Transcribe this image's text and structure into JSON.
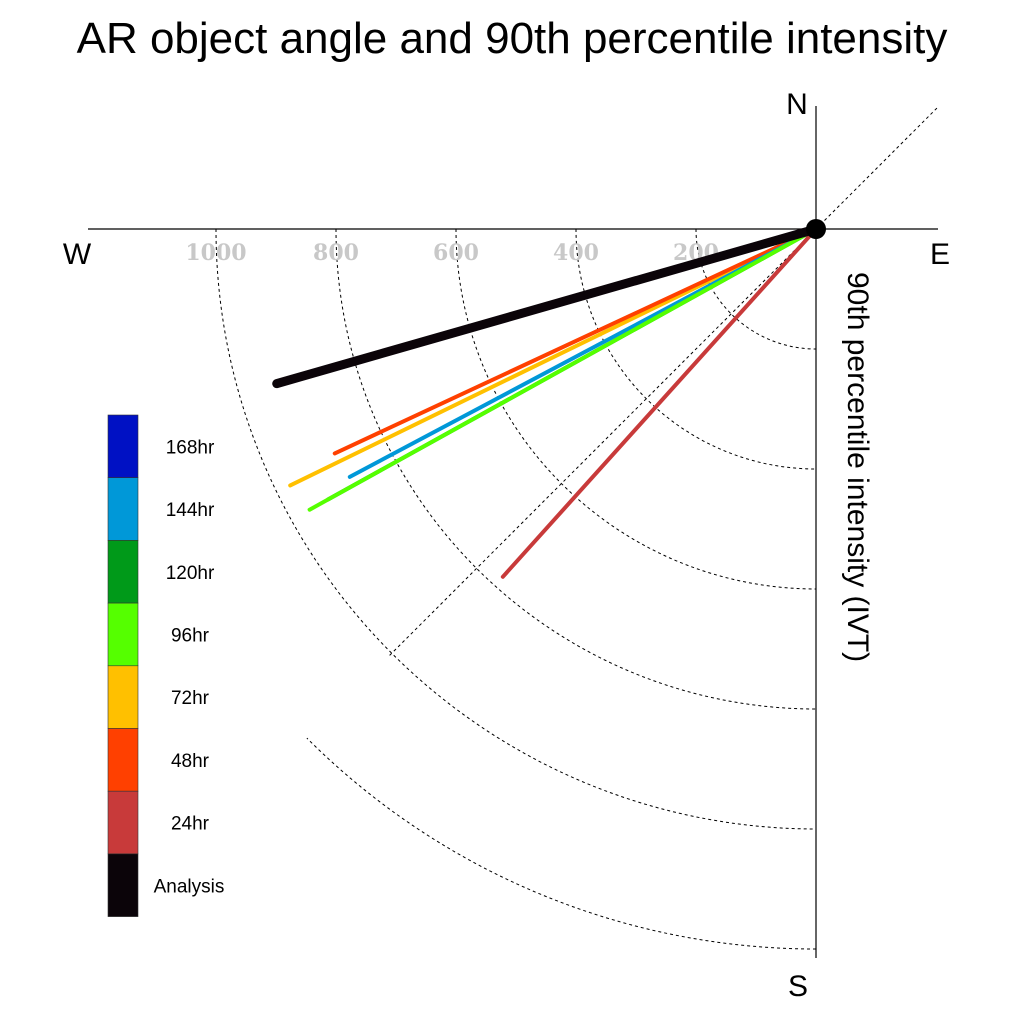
{
  "chart_data": {
    "type": "polar-vector",
    "title": "AR object angle and 90th percentile intensity",
    "ylabel": "90th percentile intensity (IVT)",
    "compass": {
      "north": "N",
      "south": "S",
      "east": "E",
      "west": "W"
    },
    "radial_ticks": [
      {
        "value": 200,
        "label": "200"
      },
      {
        "value": 400,
        "label": "400"
      },
      {
        "value": 600,
        "label": "600"
      },
      {
        "value": 800,
        "label": "800"
      },
      {
        "value": 1000,
        "label": "1000"
      }
    ],
    "radial_max": 1200,
    "series": [
      {
        "name": "Analysis",
        "intensity": 935,
        "angle_deg": 196,
        "color": "#0b0409"
      },
      {
        "name": "24hr",
        "intensity": 780,
        "angle_deg": 228,
        "color": "#c83a3a"
      },
      {
        "name": "48hr",
        "intensity": 885,
        "angle_deg": 205,
        "color": "#ff4000"
      },
      {
        "name": "72hr",
        "intensity": 975,
        "angle_deg": 206,
        "color": "#ffc000"
      },
      {
        "name": "96hr",
        "intensity": 965,
        "angle_deg": 209,
        "color": "#55ff00"
      },
      {
        "name": "120hr",
        "intensity": 930,
        "angle_deg": 209,
        "color": "#009a19"
      },
      {
        "name": "144hr",
        "intensity": 880,
        "angle_deg": 208,
        "color": "#0098d8"
      },
      {
        "name": "168hr",
        "intensity": 0,
        "angle_deg": 0,
        "color": "#0011c4"
      }
    ],
    "legend_order_top_to_bottom": [
      "168hr",
      "144hr",
      "120hr",
      "96hr",
      "72hr",
      "48hr",
      "24hr",
      "Analysis"
    ],
    "grid": true
  }
}
